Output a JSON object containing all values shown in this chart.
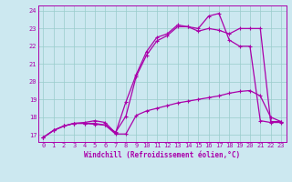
{
  "xlabel": "Windchill (Refroidissement éolien,°C)",
  "bg_color": "#cce8f0",
  "line_color": "#aa00aa",
  "grid_color": "#99cccc",
  "xlim": [
    -0.5,
    23.5
  ],
  "ylim": [
    16.6,
    24.3
  ],
  "xticks": [
    0,
    1,
    2,
    3,
    4,
    5,
    6,
    7,
    8,
    9,
    10,
    11,
    12,
    13,
    14,
    15,
    16,
    17,
    18,
    19,
    20,
    21,
    22,
    23
  ],
  "yticks": [
    17,
    18,
    19,
    20,
    21,
    22,
    23,
    24
  ],
  "line1_x": [
    0,
    1,
    2,
    3,
    4,
    5,
    6,
    7,
    8,
    9,
    10,
    11,
    12,
    13,
    14,
    15,
    16,
    17,
    18,
    19,
    20,
    21,
    22,
    23
  ],
  "line1_y": [
    16.85,
    17.25,
    17.5,
    17.65,
    17.65,
    17.6,
    17.55,
    17.05,
    17.05,
    18.1,
    18.35,
    18.5,
    18.65,
    18.8,
    18.9,
    19.0,
    19.1,
    19.2,
    19.35,
    19.45,
    19.5,
    19.2,
    18.0,
    17.75
  ],
  "line2_x": [
    0,
    1,
    2,
    3,
    4,
    5,
    6,
    7,
    8,
    9,
    10,
    11,
    12,
    13,
    14,
    15,
    16,
    17,
    18,
    19,
    20,
    21,
    22,
    23
  ],
  "line2_y": [
    16.85,
    17.25,
    17.5,
    17.65,
    17.65,
    17.65,
    17.55,
    17.15,
    18.05,
    20.3,
    21.5,
    22.3,
    22.6,
    23.1,
    23.1,
    22.85,
    23.0,
    22.9,
    22.7,
    23.0,
    23.0,
    23.0,
    17.75,
    17.75
  ],
  "line3_x": [
    0,
    1,
    2,
    3,
    4,
    5,
    6,
    7,
    8,
    9,
    10,
    11,
    12,
    13,
    14,
    15,
    16,
    17,
    18,
    19,
    20,
    21,
    22,
    23
  ],
  "line3_y": [
    16.85,
    17.25,
    17.5,
    17.65,
    17.7,
    17.8,
    17.7,
    17.1,
    18.85,
    20.4,
    21.7,
    22.5,
    22.7,
    23.2,
    23.1,
    23.0,
    23.7,
    23.85,
    22.35,
    22.0,
    22.0,
    17.8,
    17.7,
    17.7
  ]
}
